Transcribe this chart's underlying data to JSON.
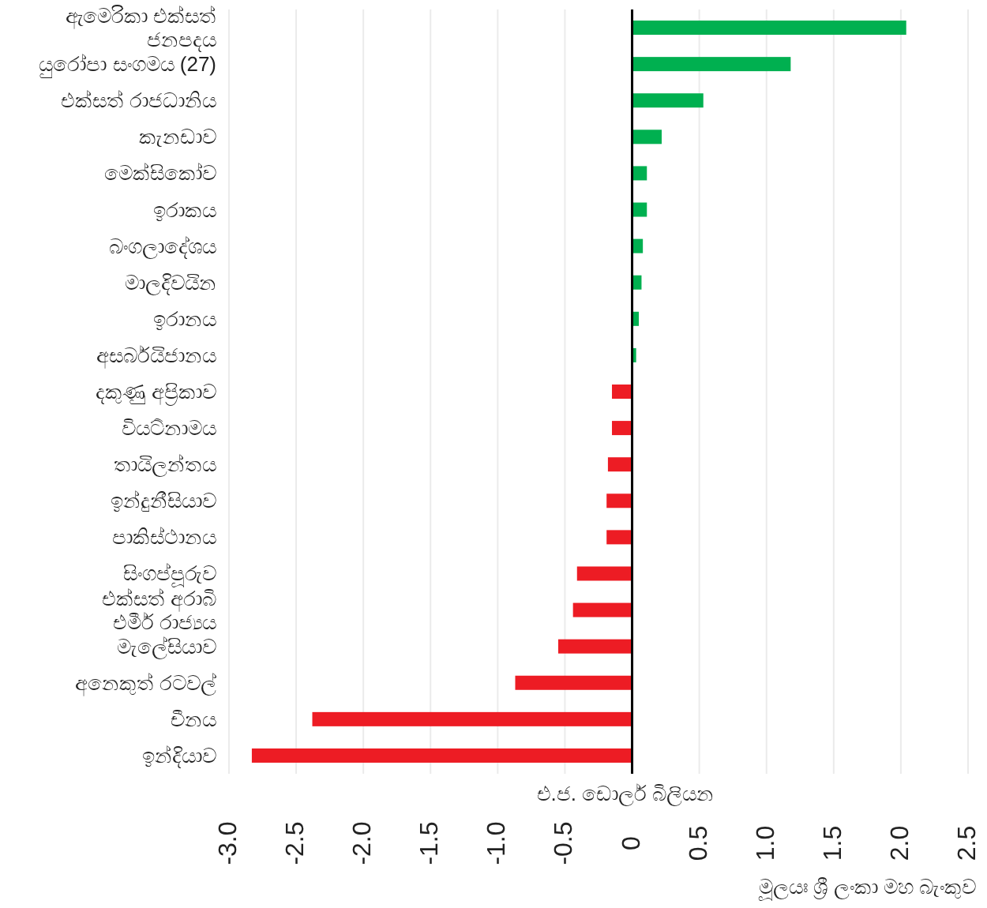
{
  "chart_data": {
    "type": "bar",
    "orientation": "horizontal",
    "categories": [
      "ඇමෙරිකා එක්සත්\nජනපදය",
      "යුරෝපා සංගමය (27)",
      "එක්සත් රාජධානිය",
      "කැනඩාව",
      "මෙක්සිකෝව",
      "ඉරාකය",
      "බංගලාදේශය",
      "මාලදිවයින",
      "ඉරානය",
      "අසර්බයිජානය",
      "දකුණු අප්‍රිකාව",
      "වියට්නාමය",
      "තායිලන්තය",
      "ඉන්දුනීසියාව",
      "පාකිස්ථානය",
      "සිංගප්පූරුව",
      "එක්සත් අරාබි\nඑමීර් රාජ්‍යය",
      "මැලේසියාව",
      "අනෙකුත් රටවල්",
      "චීනය",
      "ඉන්දියාව"
    ],
    "values": [
      2.04,
      1.18,
      0.53,
      0.22,
      0.11,
      0.11,
      0.08,
      0.07,
      0.05,
      0.03,
      -0.15,
      -0.15,
      -0.18,
      -0.19,
      -0.19,
      -0.41,
      -0.44,
      -0.55,
      -0.87,
      -2.38,
      -2.83
    ],
    "colors": [
      "#00b050",
      "#00b050",
      "#00b050",
      "#00b050",
      "#00b050",
      "#00b050",
      "#00b050",
      "#00b050",
      "#00b050",
      "#00b050",
      "#ed1c24",
      "#ed1c24",
      "#ed1c24",
      "#ed1c24",
      "#ed1c24",
      "#ed1c24",
      "#ed1c24",
      "#ed1c24",
      "#ed1c24",
      "#ed1c24",
      "#ed1c24"
    ],
    "xlim": [
      -3.0,
      2.5
    ],
    "xticks": [
      {
        "value": -3.0,
        "label": "-3.0"
      },
      {
        "value": -2.5,
        "label": "-2.5"
      },
      {
        "value": -2.0,
        "label": "-2.0"
      },
      {
        "value": -1.5,
        "label": "-1.5"
      },
      {
        "value": -1.0,
        "label": "-1.0"
      },
      {
        "value": -0.5,
        "label": "-0.5"
      },
      0,
      0.5,
      {
        "value": 1.0,
        "label": "1.0"
      },
      1.5,
      {
        "value": 2.0,
        "label": "2.0"
      },
      2.5
    ],
    "xlabel": "එ.ජ. ඩොලර් බිලියන",
    "annotations": [
      "මූලයඃ ශ්‍රී ලංකා මහ බැංකුව"
    ],
    "grid": "x"
  }
}
